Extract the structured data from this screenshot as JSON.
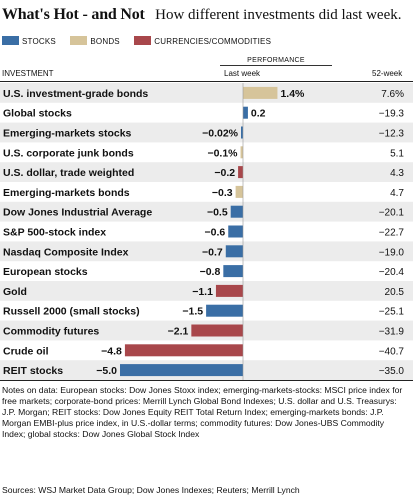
{
  "title": "What's Hot - and Not",
  "subtitle": "How different investments did last week.",
  "legend": [
    {
      "name": "STOCKS",
      "color": "#3a6ea5"
    },
    {
      "name": "BONDS",
      "color": "#d6c49a"
    },
    {
      "name": "CURRENCIES/COMMODITIES",
      "color": "#a8474b"
    }
  ],
  "headers": {
    "performance": "PERFORMANCE",
    "investment": "INVESTMENT",
    "last_week": "Last week",
    "year": "52-week"
  },
  "chart_data": {
    "type": "bar",
    "orientation": "horizontal",
    "categories": [
      "U.S. investment-grade bonds",
      "Global stocks",
      "Emerging-markets stocks",
      "U.S. corporate junk bonds",
      "U.S. dollar, trade weighted",
      "Emerging-markets bonds",
      "Dow Jones Industrial Average",
      "S&P 500-stock index",
      "Nasdaq Composite Index",
      "European stocks",
      "Gold",
      "Russell 2000 (small stocks)",
      "Commodity futures",
      "Crude oil",
      "REIT stocks"
    ],
    "values": [
      1.4,
      0.2,
      -0.02,
      -0.1,
      -0.2,
      -0.3,
      -0.5,
      -0.6,
      -0.7,
      -0.8,
      -1.1,
      -1.5,
      -2.1,
      -4.8,
      -5.0
    ],
    "value_labels": [
      "1.4%",
      "0.2",
      "−0.02%",
      "−0.1%",
      "−0.2",
      "−0.3",
      "−0.5",
      "−0.6",
      "−0.7",
      "−0.8",
      "−1.1",
      "−1.5",
      "−2.1",
      "−4.8",
      "−5.0"
    ],
    "kinds": [
      "bonds",
      "stocks",
      "stocks",
      "bonds",
      "currencies",
      "bonds",
      "stocks",
      "stocks",
      "stocks",
      "stocks",
      "currencies",
      "stocks",
      "currencies",
      "currencies",
      "stocks"
    ],
    "year_values": [
      "7.6%",
      "−19.3",
      "−12.3",
      "5.1",
      "4.3",
      "4.7",
      "−20.1",
      "−22.7",
      "−19.0",
      "−20.4",
      "20.5",
      "−25.1",
      "−31.9",
      "−40.7",
      "−35.0"
    ],
    "colors": {
      "stocks": "#3a6ea5",
      "bonds": "#d6c49a",
      "currencies": "#a8474b"
    },
    "xlim": [
      -5.0,
      1.6
    ],
    "row_shading": "alternate"
  },
  "notes": "Notes on data: European stocks: Dow Jones Stoxx index; emerging-markets-stocks: MSCI price index for free markets; corporate-bond prices: Merrill Lynch Global Bond Indexes; U.S. dollar and U.S. Treasurys: J.P. Morgan; REIT stocks: Dow Jones Equity REIT Total Return Index; emerging-markets bonds: J.P. Morgan EMBI-plus price index, in U.S.-dollar terms; commodity futures: Dow Jones-UBS Commodity Index; global stocks: Dow Jones Global Stock Index",
  "sources": "Sources: WSJ Market Data Group; Dow Jones Indexes; Reuters; Merrill Lynch"
}
